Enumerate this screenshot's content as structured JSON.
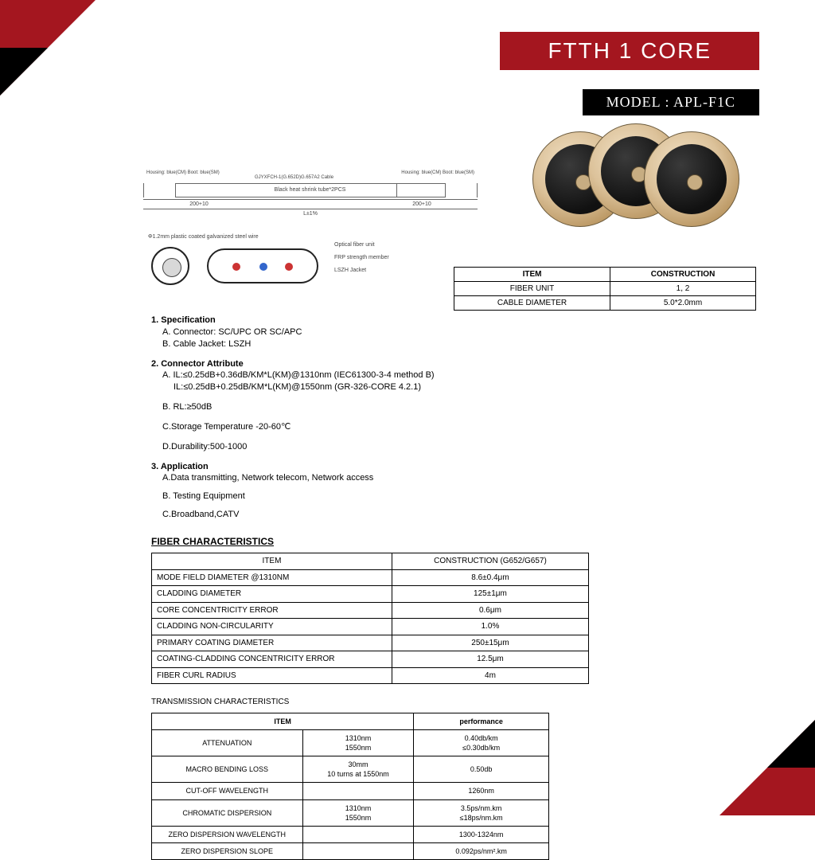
{
  "header": {
    "title": "FTTH 1 CORE",
    "model": "MODEL : APL-F1C"
  },
  "drawing": {
    "top_left_label": "Housing: blue(CM)\nBoot: blue(SM)",
    "top_right_label": "Housing: blue(CM)\nBoot: blue(SM)",
    "mid_label": "Black heat shrink tube*2PCS",
    "seg_left": "200+10",
    "seg_right": "200+10",
    "total": "L±1%",
    "cable_model": "GJYXFCH-1(G.652D)G.657A2 Cable"
  },
  "xsection": {
    "wire_label": "Φ1.2mm plastic coated galvanized steel wire",
    "l1": "Optical fiber unit",
    "l2": "FRP strength member",
    "l3": "LSZH Jacket"
  },
  "mini": {
    "h1": "ITEM",
    "h2": "CONSTRUCTION",
    "r1a": "FIBER UNIT",
    "r1b": "1, 2",
    "r2a": "CABLE DIAMETER",
    "r2b": "5.0*2.0mm"
  },
  "spec": {
    "s1": "1. Specification",
    "s1a": "A. Connector: SC/UPC OR SC/APC",
    "s1b": "B. Cable Jacket: LSZH",
    "s2": "2. Connector Attribute",
    "s2a": "A. IL:≤0.25dB+0.36dB/KM*L(KM)@1310nm (IEC61300-3-4 method B)",
    "s2a2": "IL:≤0.25dB+0.25dB/KM*L(KM)@1550nm (GR-326-CORE 4.2.1)",
    "s2b": "B. RL:≥50dB",
    "s2c": "C.Storage Temperature -20-60℃",
    "s2d": "D.Durability:500-1000",
    "s3": "3. Application",
    "s3a": "A.Data transmitting, Network telecom, Network access",
    "s3b": "B. Testing Equipment",
    "s3c": "C.Broadband,CATV",
    "fiberTitle": "FIBER CHARACTERISTICS"
  },
  "fiber": {
    "h1": "ITEM",
    "h2": "CONSTRUCTION (G652/G657)",
    "rows": [
      [
        "MODE FIELD DIAMETER @1310NM",
        "8.6±0.4μm"
      ],
      [
        "CLADDING DIAMETER",
        "125±1μm"
      ],
      [
        "CORE CONCENTRICITY ERROR",
        "0.6μm"
      ],
      [
        "CLADDING NON-CIRCULARITY",
        "1.0%"
      ],
      [
        "PRIMARY COATING DIAMETER",
        "250±15μm"
      ],
      [
        "COATING-CLADDING CONCENTRICITY ERROR",
        "12.5μm"
      ],
      [
        "FIBER CURL RADIUS",
        "4m"
      ]
    ]
  },
  "trans": {
    "title": "TRANSMISSION CHARACTERISTICS",
    "h1": "ITEM",
    "h2": "",
    "h3": "performance",
    "rows": [
      [
        "ATTENUATION",
        "1310nm\n1550nm",
        "0.40db/km\n≤0.30db/km"
      ],
      [
        "MACRO BENDING LOSS",
        "30mm\n10 turns at 1550nm",
        "0.50db"
      ],
      [
        "CUT-OFF WAVELENGTH",
        "",
        "1260nm"
      ],
      [
        "CHROMATIC DISPERSION",
        "1310nm\n1550nm",
        "3.5ps/nm.km\n≤18ps/nm.km"
      ],
      [
        "ZERO DISPERSION WAVELENGTH",
        "",
        "1300-1324nm"
      ],
      [
        "ZERO DISPERSION SLOPE",
        "",
        "0.092ps/nm².km"
      ]
    ]
  },
  "colors": {
    "red": "#a4161f",
    "black": "#000000",
    "white": "#ffffff"
  }
}
